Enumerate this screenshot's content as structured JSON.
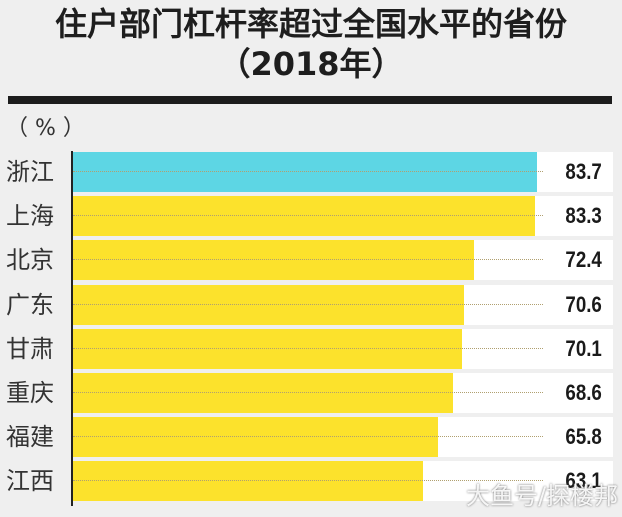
{
  "chart_data": {
    "type": "bar",
    "orientation": "horizontal",
    "title": "住户部门杠杆率超过全国水平的省份",
    "subtitle": "（2018年）",
    "unit": "（%）",
    "categories": [
      "浙江",
      "上海",
      "北京",
      "广东",
      "甘肃",
      "重庆",
      "福建",
      "江西"
    ],
    "values": [
      83.7,
      83.3,
      72.4,
      70.6,
      70.1,
      68.6,
      65.8,
      63.1
    ],
    "colors": [
      "#5dd6e4",
      "#fce22c",
      "#fce22c",
      "#fce22c",
      "#fce22c",
      "#fce22c",
      "#fce22c",
      "#fce22c"
    ],
    "xlabel": "",
    "ylabel": "",
    "grid": false,
    "legend": "none"
  },
  "title": {
    "line1": "住户部门杠杆率超过全国水平的省份",
    "line2": "（2018年）"
  },
  "unit_label": "（ % ）",
  "rows": [
    {
      "label": "浙江",
      "value": "83.7",
      "num": 83.7,
      "color": "#5dd6e4"
    },
    {
      "label": "上海",
      "value": "83.3",
      "num": 83.3,
      "color": "#fce22c"
    },
    {
      "label": "北京",
      "value": "72.4",
      "num": 72.4,
      "color": "#fce22c"
    },
    {
      "label": "广东",
      "value": "70.6",
      "num": 70.6,
      "color": "#fce22c"
    },
    {
      "label": "甘肃",
      "value": "70.1",
      "num": 70.1,
      "color": "#fce22c"
    },
    {
      "label": "重庆",
      "value": "68.6",
      "num": 68.6,
      "color": "#fce22c"
    },
    {
      "label": "福建",
      "value": "65.8",
      "num": 65.8,
      "color": "#fce22c"
    },
    {
      "label": "江西",
      "value": "63.1",
      "num": 63.1,
      "color": "#fce22c"
    }
  ],
  "watermark": "大鱼号/探楼邦"
}
